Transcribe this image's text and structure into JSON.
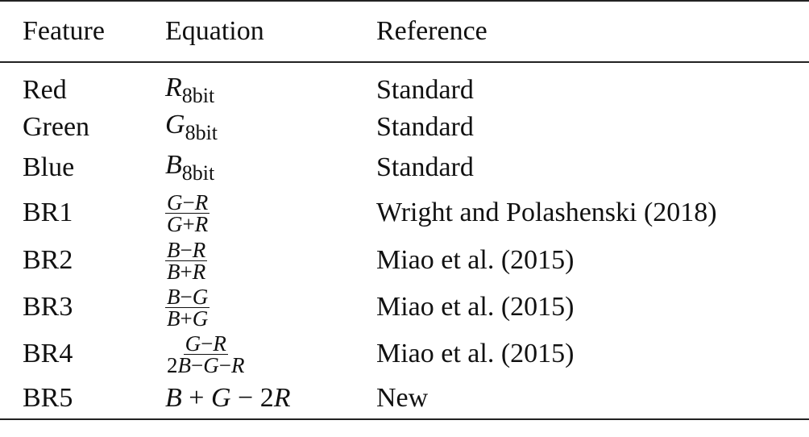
{
  "table": {
    "header": [
      "Feature",
      "Equation",
      "Reference"
    ],
    "rows": [
      {
        "feature": "Red",
        "equation": {
          "symbol": "R",
          "subscript": "8bit"
        },
        "reference": "Standard"
      },
      {
        "feature": "Green",
        "equation": {
          "symbol": "G",
          "subscript": "8bit"
        },
        "reference": "Standard"
      },
      {
        "feature": "Blue",
        "equation": {
          "symbol": "B",
          "subscript": "8bit"
        },
        "reference": "Standard"
      },
      {
        "feature": "BR1",
        "equation": {
          "numerator": "G−R",
          "denominator": "G+R"
        },
        "reference": "Wright and Polashenski (2018)"
      },
      {
        "feature": "BR2",
        "equation": {
          "numerator": "B−R",
          "denominator": "B+R"
        },
        "reference": "Miao et al. (2015)"
      },
      {
        "feature": "BR3",
        "equation": {
          "numerator": "B−G",
          "denominator": "B+G"
        },
        "reference": "Miao et al. (2015)"
      },
      {
        "feature": "BR4",
        "equation": {
          "numerator": "G−R",
          "denominator": "2B−G−R"
        },
        "reference": "Miao et al. (2015)"
      },
      {
        "feature": "BR5",
        "equation": {
          "text": "B + G − 2R"
        },
        "reference": "New"
      }
    ]
  }
}
